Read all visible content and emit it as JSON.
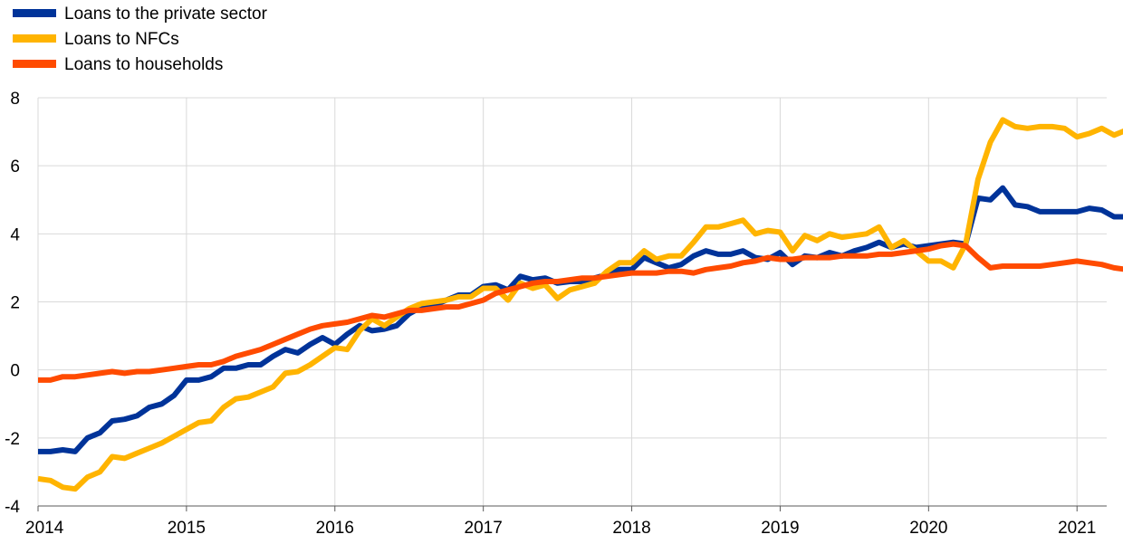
{
  "chart_data": {
    "type": "line",
    "title": "",
    "xlabel": "",
    "ylabel": "",
    "ylim": [
      -4,
      8
    ],
    "yticks": [
      -4,
      -2,
      0,
      2,
      4,
      6,
      8
    ],
    "xlim": [
      2014.0,
      2021.2
    ],
    "xticks": [
      2014,
      2015,
      2016,
      2017,
      2018,
      2019,
      2020,
      2021
    ],
    "xtick_labels": [
      "2014",
      "2015",
      "2016",
      "2017",
      "2018",
      "2019",
      "2020",
      "2021"
    ],
    "grid": "vertical-and-horizontal",
    "legend_position": "top-left",
    "x_start": 2014.0,
    "x_step": 0.08333,
    "series": [
      {
        "name": "Loans to the private sector",
        "color": "#003399",
        "values": [
          -2.4,
          -2.4,
          -2.35,
          -2.4,
          -2.0,
          -1.85,
          -1.5,
          -1.45,
          -1.35,
          -1.1,
          -1.0,
          -0.75,
          -0.3,
          -0.3,
          -0.2,
          0.05,
          0.05,
          0.15,
          0.15,
          0.4,
          0.6,
          0.5,
          0.75,
          0.95,
          0.75,
          1.05,
          1.3,
          1.15,
          1.2,
          1.3,
          1.65,
          1.85,
          1.9,
          2.05,
          2.2,
          2.2,
          2.45,
          2.5,
          2.35,
          2.75,
          2.65,
          2.7,
          2.55,
          2.6,
          2.6,
          2.7,
          2.8,
          2.95,
          2.95,
          3.3,
          3.15,
          3.0,
          3.1,
          3.35,
          3.5,
          3.4,
          3.4,
          3.5,
          3.3,
          3.25,
          3.45,
          3.1,
          3.35,
          3.3,
          3.45,
          3.35,
          3.5,
          3.6,
          3.75,
          3.6,
          3.7,
          3.6,
          3.65,
          3.7,
          3.75,
          3.7,
          5.05,
          5.0,
          5.35,
          4.85,
          4.8,
          4.65,
          4.65,
          4.65,
          4.65,
          4.75,
          4.7,
          4.5,
          4.5
        ]
      },
      {
        "name": "Loans to NFCs",
        "color": "#FFB400",
        "values": [
          -3.2,
          -3.25,
          -3.45,
          -3.5,
          -3.15,
          -3.0,
          -2.55,
          -2.6,
          -2.45,
          -2.3,
          -2.15,
          -1.95,
          -1.75,
          -1.55,
          -1.5,
          -1.1,
          -0.85,
          -0.8,
          -0.65,
          -0.5,
          -0.1,
          -0.05,
          0.15,
          0.4,
          0.65,
          0.6,
          1.15,
          1.5,
          1.3,
          1.55,
          1.8,
          1.95,
          2.0,
          2.05,
          2.15,
          2.15,
          2.4,
          2.4,
          2.05,
          2.55,
          2.4,
          2.5,
          2.1,
          2.35,
          2.45,
          2.55,
          2.9,
          3.15,
          3.15,
          3.5,
          3.25,
          3.35,
          3.35,
          3.75,
          4.2,
          4.2,
          4.3,
          4.4,
          4.0,
          4.1,
          4.05,
          3.5,
          3.95,
          3.8,
          4.0,
          3.9,
          3.95,
          4.0,
          4.2,
          3.6,
          3.8,
          3.5,
          3.2,
          3.2,
          3.0,
          3.7,
          5.6,
          6.7,
          7.35,
          7.15,
          7.1,
          7.15,
          7.15,
          7.1,
          6.85,
          6.95,
          7.1,
          6.9,
          7.05
        ]
      },
      {
        "name": "Loans to households",
        "color": "#FF4B00",
        "values": [
          -0.3,
          -0.3,
          -0.2,
          -0.2,
          -0.15,
          -0.1,
          -0.05,
          -0.1,
          -0.05,
          -0.05,
          0.0,
          0.05,
          0.1,
          0.15,
          0.15,
          0.25,
          0.4,
          0.5,
          0.6,
          0.75,
          0.9,
          1.05,
          1.2,
          1.3,
          1.35,
          1.4,
          1.5,
          1.6,
          1.55,
          1.65,
          1.75,
          1.75,
          1.8,
          1.85,
          1.85,
          1.95,
          2.05,
          2.25,
          2.35,
          2.45,
          2.55,
          2.6,
          2.6,
          2.65,
          2.7,
          2.7,
          2.75,
          2.8,
          2.85,
          2.85,
          2.85,
          2.9,
          2.9,
          2.85,
          2.95,
          3.0,
          3.05,
          3.15,
          3.2,
          3.3,
          3.25,
          3.25,
          3.3,
          3.3,
          3.3,
          3.35,
          3.35,
          3.35,
          3.4,
          3.4,
          3.45,
          3.5,
          3.55,
          3.65,
          3.7,
          3.65,
          3.3,
          3.0,
          3.05,
          3.05,
          3.05,
          3.05,
          3.1,
          3.15,
          3.2,
          3.15,
          3.1,
          3.0,
          2.95
        ]
      }
    ]
  }
}
